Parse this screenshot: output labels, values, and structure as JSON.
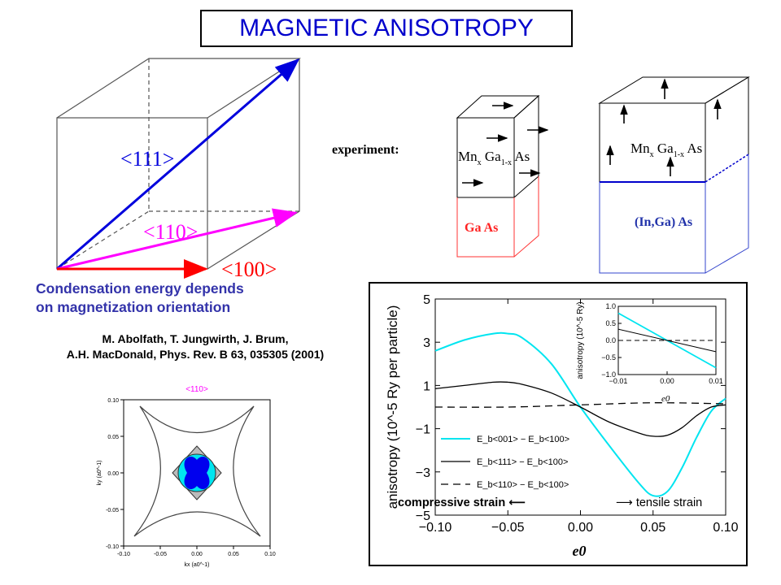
{
  "title": "MAGNETIC ANISOTROPY",
  "cube_labels": {
    "d111": "<111>",
    "d110": "<110>",
    "d100": "<100>"
  },
  "condensation": {
    "line1": "Condensation energy depends",
    "line2": "on magnetization orientation"
  },
  "reference": {
    "line1": "M. Abolfath, T. Jungwirth, J. Brum,",
    "line2": "A.H. MacDonald, Phys. Rev. B 63, 035305 (2001)"
  },
  "experiment_label": "experiment:",
  "sample_left": {
    "top_label": [
      "Mn",
      "x",
      " Ga",
      "1-x",
      " As"
    ],
    "substrate": "Ga As"
  },
  "sample_right": {
    "top_label": [
      "Mn",
      "x",
      " Ga",
      "1-x",
      " As"
    ],
    "substrate": "(In,Ga) As"
  },
  "colors": {
    "blue": "#0000dd",
    "magenta": "#ff00ff",
    "red": "#ff0000",
    "cyan": "#00e5f0",
    "title": "#0000cc"
  },
  "fermi_plot": {
    "title": "<110>",
    "xlabel": "kx (a0^-1)",
    "ylabel": "ky (a0^-1)",
    "xticks": [
      "-0.10",
      "-0.05",
      "0.00",
      "0.05",
      "0.10"
    ],
    "yticks": [
      "0.10",
      "0.05",
      "0.00",
      "-0.05",
      "-0.10"
    ]
  },
  "chart_data": {
    "type": "line",
    "xlabel": "e0",
    "ylabel": "anisotropy (10^-5 Ry per particle)",
    "xlim": [
      -0.1,
      0.1
    ],
    "ylim": [
      -5,
      5
    ],
    "xticks": [
      "−0.10",
      "−0.05",
      "0.00",
      "0.05",
      "0.10"
    ],
    "yticks": [
      "5",
      "3",
      "1",
      "−1",
      "−3",
      "−5"
    ],
    "series": [
      {
        "name": "E_b<001> − E_b<100>",
        "color": "#00e5f0",
        "style": "solid",
        "x": [
          -0.1,
          -0.08,
          -0.06,
          -0.05,
          -0.04,
          -0.02,
          0.0,
          0.02,
          0.04,
          0.05,
          0.06,
          0.07,
          0.08,
          0.09,
          0.1
        ],
        "y": [
          2.6,
          3.1,
          3.4,
          3.4,
          3.2,
          2.0,
          0.0,
          -1.8,
          -3.5,
          -4.1,
          -3.9,
          -2.8,
          -1.4,
          -0.2,
          0.4
        ]
      },
      {
        "name": "E_b<111> − E_b<100>",
        "color": "#000000",
        "style": "solid",
        "x": [
          -0.1,
          -0.08,
          -0.06,
          -0.05,
          -0.04,
          -0.02,
          0.0,
          0.02,
          0.04,
          0.05,
          0.06,
          0.07,
          0.08,
          0.09,
          0.1
        ],
        "y": [
          0.85,
          1.0,
          1.15,
          1.15,
          1.05,
          0.65,
          0.0,
          -0.7,
          -1.2,
          -1.35,
          -1.3,
          -0.95,
          -0.4,
          0.0,
          0.1
        ]
      },
      {
        "name": "E_b<110> − E_b<100>",
        "color": "#000000",
        "style": "dashed",
        "x": [
          -0.1,
          -0.05,
          0.0,
          0.05,
          0.1
        ],
        "y": [
          0.0,
          0.0,
          0.1,
          0.2,
          0.15
        ]
      }
    ],
    "annotation": "e0",
    "strain_left": "compressive strain",
    "strain_right": "tensile strain",
    "inset": {
      "ylabel": "anisotropy (10^-5 Ry)",
      "xlim": [
        -0.01,
        0.01
      ],
      "ylim": [
        -1.0,
        1.0
      ],
      "xticks": [
        "−0.01",
        "0.00",
        "0.01"
      ],
      "yticks": [
        "1.0",
        "0.5",
        "0.0",
        "−0.5",
        "−1.0"
      ],
      "series": [
        {
          "color": "#00e5f0",
          "style": "solid",
          "x": [
            -0.01,
            0.01
          ],
          "y": [
            0.8,
            -0.8
          ]
        },
        {
          "color": "#000000",
          "style": "solid",
          "x": [
            -0.01,
            0.01
          ],
          "y": [
            0.33,
            -0.33
          ]
        },
        {
          "color": "#000000",
          "style": "dashed",
          "x": [
            -0.01,
            0.01
          ],
          "y": [
            0.0,
            0.0
          ]
        }
      ]
    }
  }
}
